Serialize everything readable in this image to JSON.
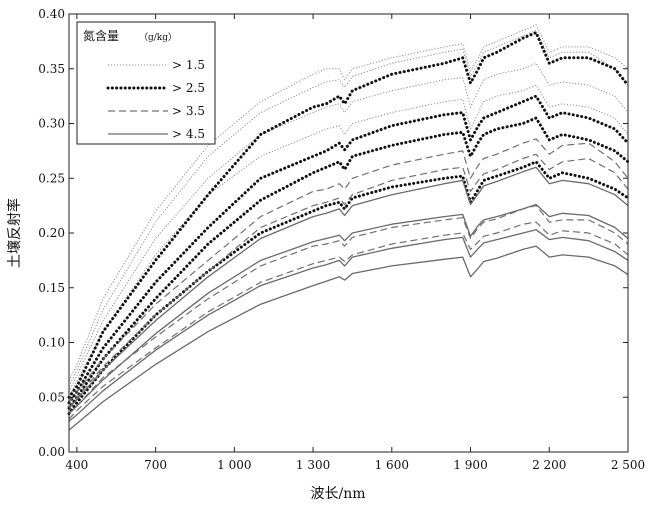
{
  "chart_data": {
    "type": "line",
    "xlabel": "波长/nm",
    "ylabel": "土壤反射率",
    "xlim": [
      370,
      2500
    ],
    "ylim": [
      0.0,
      0.4
    ],
    "xticks": [
      400,
      700,
      1000,
      1300,
      1600,
      1900,
      2200,
      2500
    ],
    "xtick_labels": [
      "400",
      "700",
      "1 000",
      "1 300",
      "1 600",
      "1 900",
      "2 200",
      "2 500"
    ],
    "yticks": [
      0.0,
      0.05,
      0.1,
      0.15,
      0.2,
      0.25,
      0.3,
      0.35,
      0.4
    ],
    "ytick_labels": [
      "0.00",
      "0.05",
      "0.10",
      "0.15",
      "0.20",
      "0.25",
      "0.30",
      "0.35",
      "0.40"
    ],
    "grid": false,
    "legend": {
      "placement": "top-left",
      "title": "氮含量",
      "unit": "（g/kg）",
      "entries": [
        {
          "label": "> 1.5",
          "style": "dotted-thin",
          "color": "#8c8c8c"
        },
        {
          "label": "> 2.5",
          "style": "dotted-bold",
          "color": "#111111"
        },
        {
          "label": "> 3.5",
          "style": "dashed",
          "color": "#707070"
        },
        {
          "label": "> 4.5",
          "style": "solid",
          "color": "#6a6a6a"
        }
      ]
    },
    "series_x": [
      370,
      400,
      500,
      700,
      900,
      1100,
      1300,
      1350,
      1400,
      1420,
      1450,
      1600,
      1800,
      1870,
      1900,
      1930,
      1950,
      2000,
      2100,
      2150,
      2200,
      2250,
      2350,
      2450,
      2500
    ],
    "series": [
      {
        "group": "> 1.5",
        "values": [
          0.065,
          0.08,
          0.14,
          0.22,
          0.28,
          0.32,
          0.345,
          0.35,
          0.35,
          0.34,
          0.35,
          0.36,
          0.37,
          0.373,
          0.348,
          0.36,
          0.37,
          0.375,
          0.385,
          0.39,
          0.365,
          0.37,
          0.37,
          0.36,
          0.35
        ]
      },
      {
        "group": "> 1.5",
        "values": [
          0.06,
          0.075,
          0.13,
          0.21,
          0.27,
          0.31,
          0.333,
          0.338,
          0.34,
          0.333,
          0.343,
          0.355,
          0.365,
          0.368,
          0.343,
          0.355,
          0.365,
          0.37,
          0.38,
          0.385,
          0.36,
          0.365,
          0.365,
          0.35,
          0.335
        ]
      },
      {
        "group": "> 1.5",
        "values": [
          0.055,
          0.07,
          0.12,
          0.195,
          0.25,
          0.29,
          0.31,
          0.315,
          0.318,
          0.31,
          0.32,
          0.33,
          0.34,
          0.342,
          0.315,
          0.33,
          0.34,
          0.345,
          0.35,
          0.355,
          0.335,
          0.338,
          0.335,
          0.325,
          0.31
        ]
      },
      {
        "group": "> 1.5",
        "values": [
          0.05,
          0.065,
          0.11,
          0.18,
          0.235,
          0.27,
          0.29,
          0.295,
          0.298,
          0.29,
          0.3,
          0.31,
          0.32,
          0.322,
          0.295,
          0.31,
          0.32,
          0.325,
          0.33,
          0.335,
          0.315,
          0.318,
          0.315,
          0.305,
          0.29
        ]
      },
      {
        "group": "> 2.5",
        "values": [
          0.05,
          0.06,
          0.11,
          0.175,
          0.235,
          0.29,
          0.315,
          0.318,
          0.325,
          0.318,
          0.33,
          0.345,
          0.355,
          0.36,
          0.337,
          0.35,
          0.36,
          0.365,
          0.378,
          0.383,
          0.355,
          0.36,
          0.36,
          0.35,
          0.335
        ]
      },
      {
        "group": "> 2.5",
        "values": [
          0.045,
          0.055,
          0.095,
          0.155,
          0.205,
          0.25,
          0.27,
          0.275,
          0.282,
          0.276,
          0.285,
          0.298,
          0.308,
          0.31,
          0.285,
          0.298,
          0.305,
          0.31,
          0.32,
          0.325,
          0.305,
          0.31,
          0.305,
          0.295,
          0.282
        ]
      },
      {
        "group": "> 2.5",
        "values": [
          0.04,
          0.05,
          0.085,
          0.14,
          0.19,
          0.23,
          0.255,
          0.26,
          0.265,
          0.258,
          0.27,
          0.28,
          0.29,
          0.292,
          0.27,
          0.283,
          0.29,
          0.295,
          0.3,
          0.305,
          0.285,
          0.29,
          0.285,
          0.275,
          0.265
        ]
      },
      {
        "group": "> 2.5",
        "values": [
          0.035,
          0.045,
          0.075,
          0.125,
          0.165,
          0.2,
          0.22,
          0.225,
          0.228,
          0.222,
          0.232,
          0.242,
          0.25,
          0.252,
          0.228,
          0.24,
          0.248,
          0.252,
          0.26,
          0.265,
          0.25,
          0.255,
          0.25,
          0.24,
          0.232
        ]
      },
      {
        "group": "> 3.5",
        "values": [
          0.045,
          0.055,
          0.085,
          0.135,
          0.175,
          0.215,
          0.238,
          0.24,
          0.245,
          0.24,
          0.25,
          0.262,
          0.272,
          0.275,
          0.25,
          0.262,
          0.268,
          0.272,
          0.282,
          0.286,
          0.272,
          0.28,
          0.282,
          0.265,
          0.25
        ]
      },
      {
        "group": "> 3.5",
        "values": [
          0.04,
          0.05,
          0.078,
          0.125,
          0.165,
          0.205,
          0.225,
          0.228,
          0.232,
          0.226,
          0.235,
          0.248,
          0.258,
          0.26,
          0.238,
          0.248,
          0.254,
          0.258,
          0.268,
          0.272,
          0.258,
          0.265,
          0.268,
          0.255,
          0.24
        ]
      },
      {
        "group": "> 3.5",
        "values": [
          0.035,
          0.042,
          0.068,
          0.105,
          0.14,
          0.17,
          0.188,
          0.19,
          0.193,
          0.188,
          0.196,
          0.205,
          0.212,
          0.214,
          0.195,
          0.205,
          0.21,
          0.213,
          0.222,
          0.225,
          0.21,
          0.212,
          0.212,
          0.2,
          0.19
        ]
      },
      {
        "group": "> 3.5",
        "values": [
          0.03,
          0.038,
          0.06,
          0.095,
          0.128,
          0.155,
          0.172,
          0.175,
          0.178,
          0.174,
          0.18,
          0.19,
          0.198,
          0.2,
          0.185,
          0.192,
          0.197,
          0.2,
          0.208,
          0.21,
          0.198,
          0.202,
          0.2,
          0.19,
          0.18
        ]
      },
      {
        "group": "> 4.5",
        "values": [
          0.04,
          0.048,
          0.075,
          0.12,
          0.16,
          0.195,
          0.215,
          0.218,
          0.222,
          0.216,
          0.225,
          0.235,
          0.245,
          0.248,
          0.226,
          0.236,
          0.243,
          0.247,
          0.256,
          0.26,
          0.245,
          0.248,
          0.245,
          0.235,
          0.225
        ]
      },
      {
        "group": "> 4.5",
        "values": [
          0.035,
          0.042,
          0.066,
          0.108,
          0.145,
          0.175,
          0.192,
          0.195,
          0.198,
          0.193,
          0.2,
          0.208,
          0.215,
          0.217,
          0.197,
          0.207,
          0.212,
          0.215,
          0.222,
          0.226,
          0.215,
          0.218,
          0.216,
          0.205,
          0.195
        ]
      },
      {
        "group": "> 4.5",
        "values": [
          0.028,
          0.034,
          0.056,
          0.093,
          0.125,
          0.152,
          0.168,
          0.171,
          0.175,
          0.17,
          0.178,
          0.186,
          0.194,
          0.196,
          0.178,
          0.186,
          0.191,
          0.194,
          0.2,
          0.203,
          0.194,
          0.196,
          0.193,
          0.183,
          0.175
        ]
      },
      {
        "group": "> 4.5",
        "values": [
          0.02,
          0.026,
          0.046,
          0.08,
          0.11,
          0.135,
          0.152,
          0.156,
          0.16,
          0.157,
          0.163,
          0.17,
          0.176,
          0.178,
          0.16,
          0.168,
          0.174,
          0.177,
          0.185,
          0.188,
          0.178,
          0.18,
          0.178,
          0.17,
          0.162
        ]
      }
    ]
  }
}
